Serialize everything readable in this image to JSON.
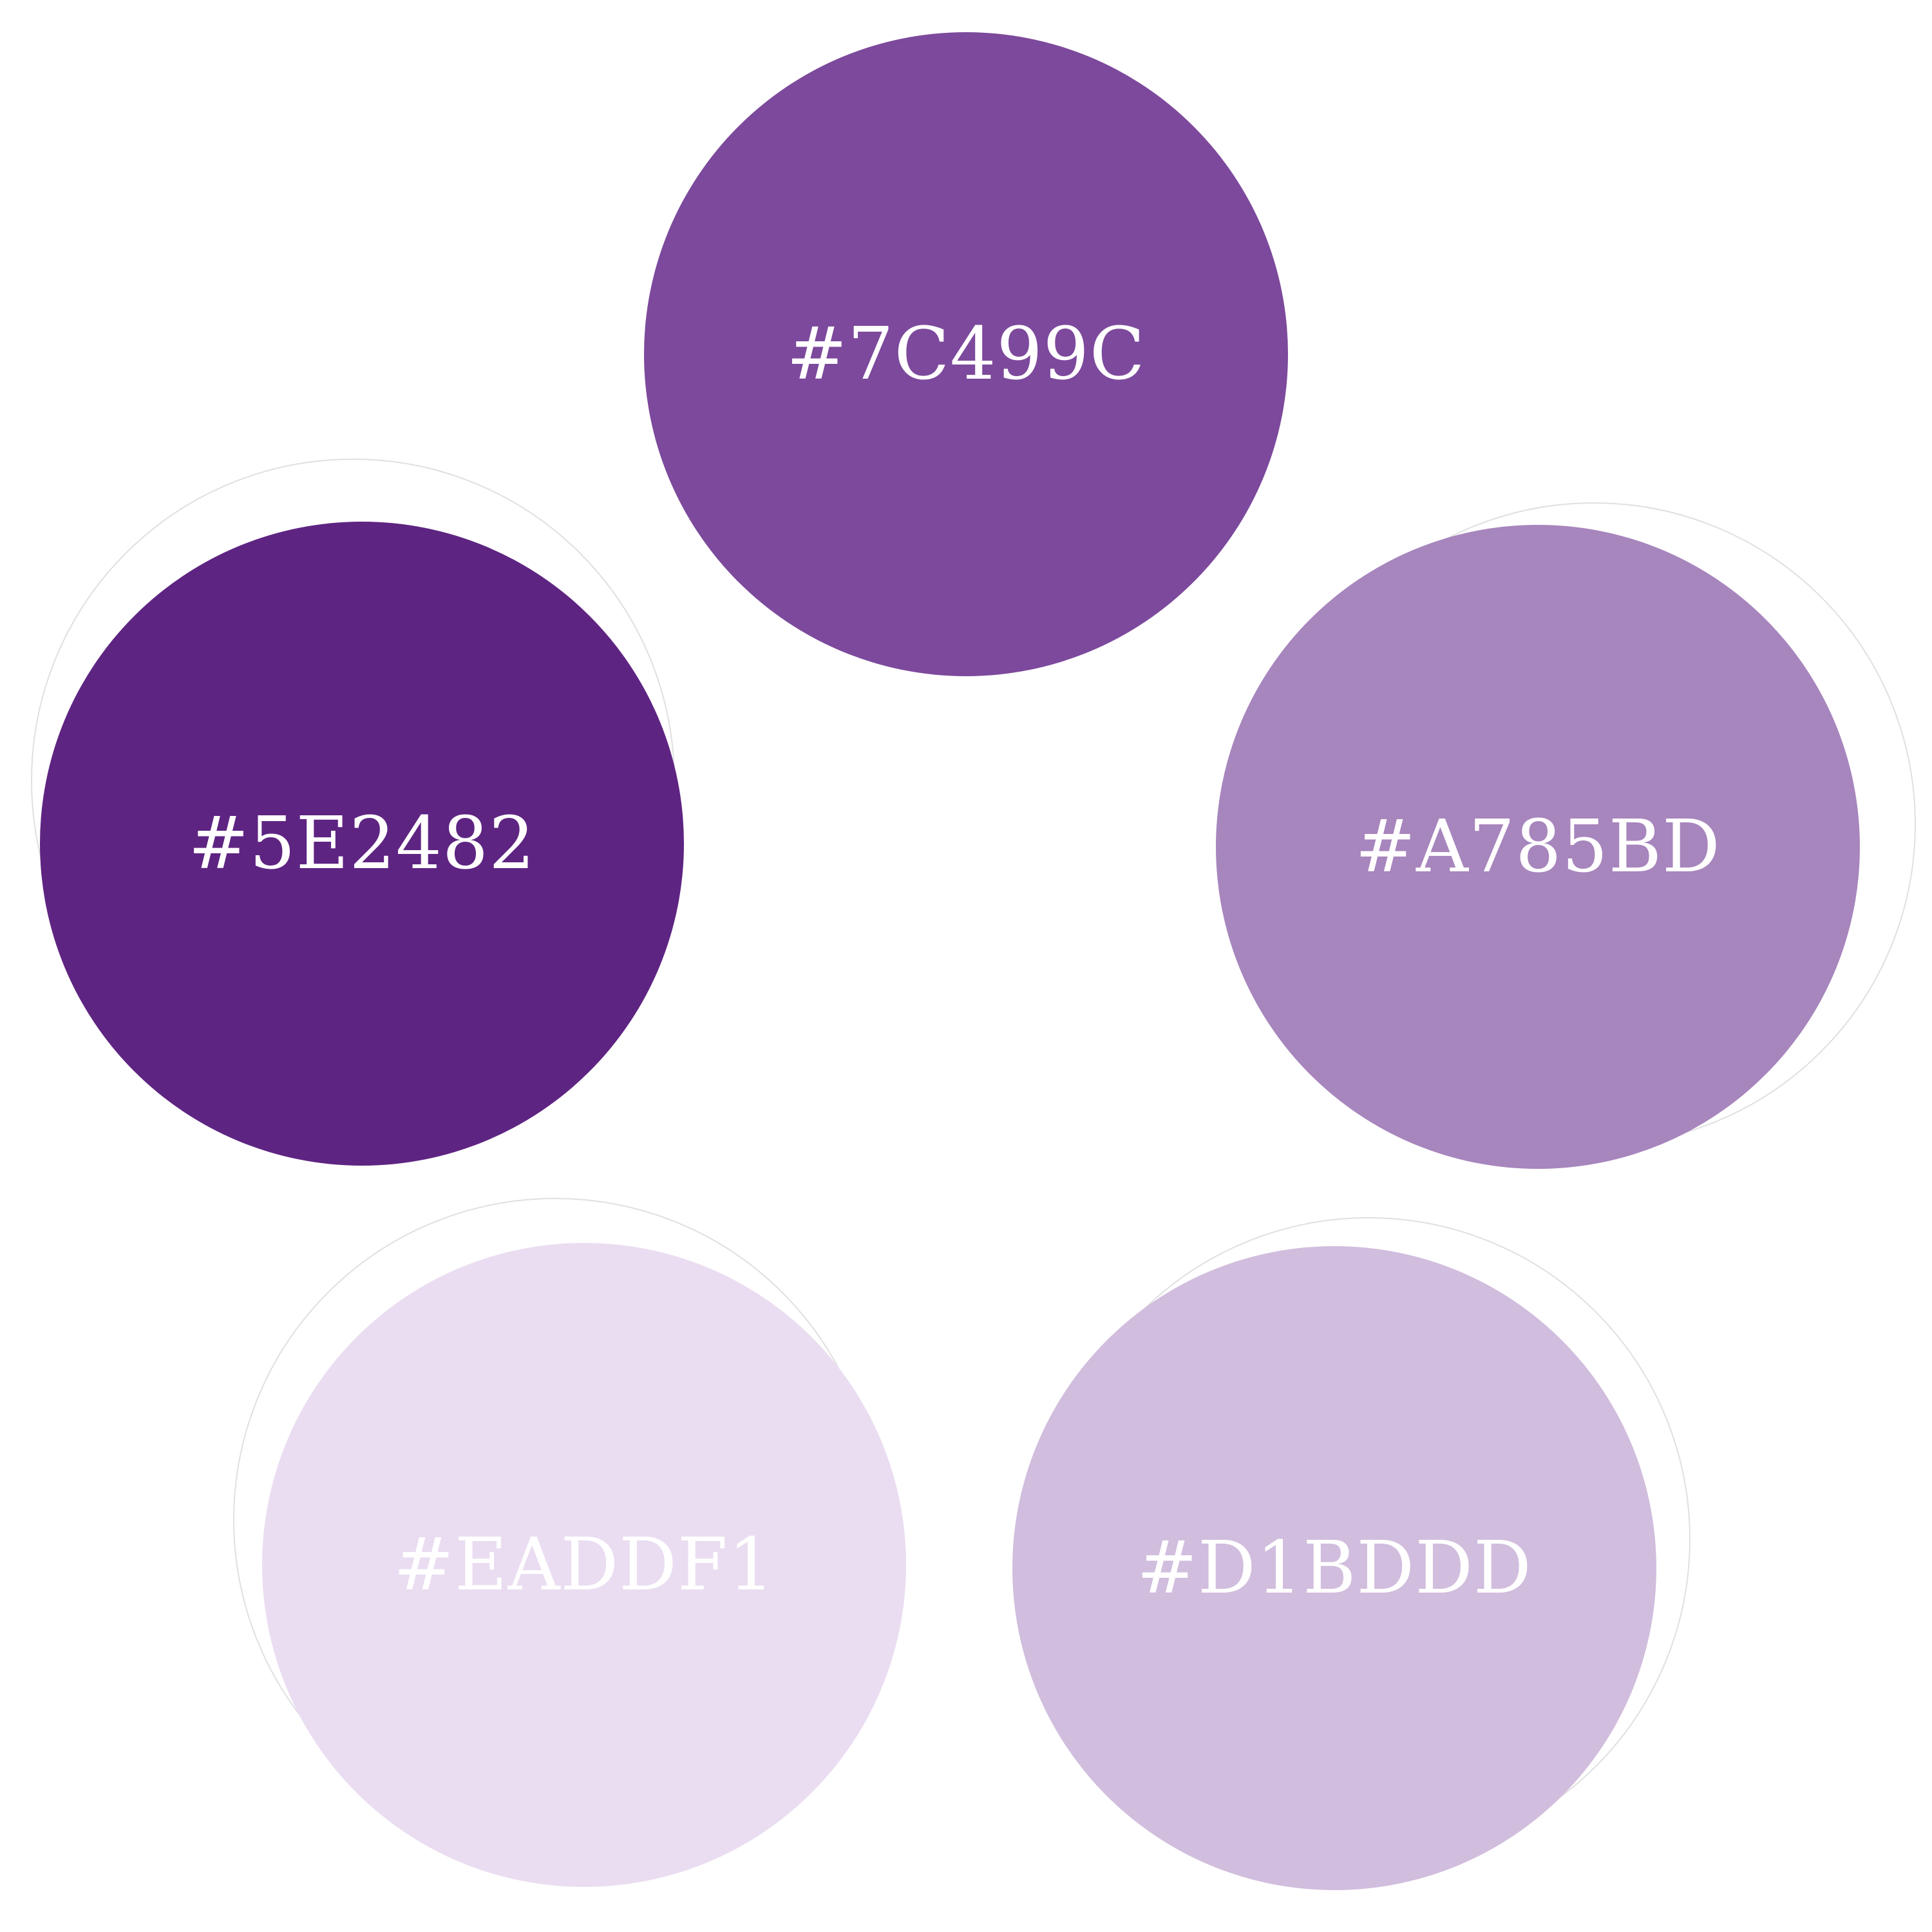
{
  "palette": {
    "swatches": [
      {
        "hex": "#7C499C",
        "color": "#7C499C"
      },
      {
        "hex": "#5E2482",
        "color": "#5E2482"
      },
      {
        "hex": "#A785BD",
        "color": "#A785BD"
      },
      {
        "hex": "#EADDF1",
        "color": "#EADDF1"
      },
      {
        "hex": "#D1BDDD",
        "color": "#D1BDDD"
      }
    ]
  }
}
